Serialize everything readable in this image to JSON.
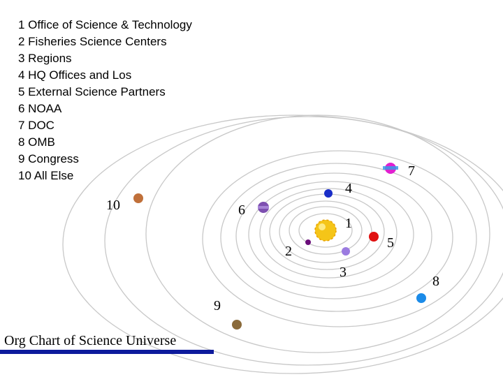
{
  "legend": {
    "items": [
      "1 Office of Science & Technology",
      "2 Fisheries Science Centers",
      "3 Regions",
      "4 HQ Offices and Los",
      "5 External Science Partners",
      "6 NOAA",
      "7 DOC",
      "8 OMB",
      "9 Congress",
      "10 All Else"
    ]
  },
  "planets": {
    "p1": "1",
    "p2": "2",
    "p3": "3",
    "p4": "4",
    "p5": "5",
    "p6": "6",
    "p7": "7",
    "p8": "8",
    "p9": "9",
    "p10": "10"
  },
  "caption": "Org Chart of Science Universe",
  "colors": {
    "sun": "#f5c518",
    "orbit": "#c8c8c8",
    "caption_bar": "#0d1a9c",
    "planet_1": "#6a0d7a",
    "planet_3": "#9b7be0",
    "planet_4": "#1a2ec8",
    "planet_5": "#e01010",
    "planet_6": "#7d4fb0",
    "planet_7": "#e020d0",
    "planet_8": "#1b8be8",
    "planet_9": "#8a6a3a",
    "planet_10": "#c0703a"
  }
}
